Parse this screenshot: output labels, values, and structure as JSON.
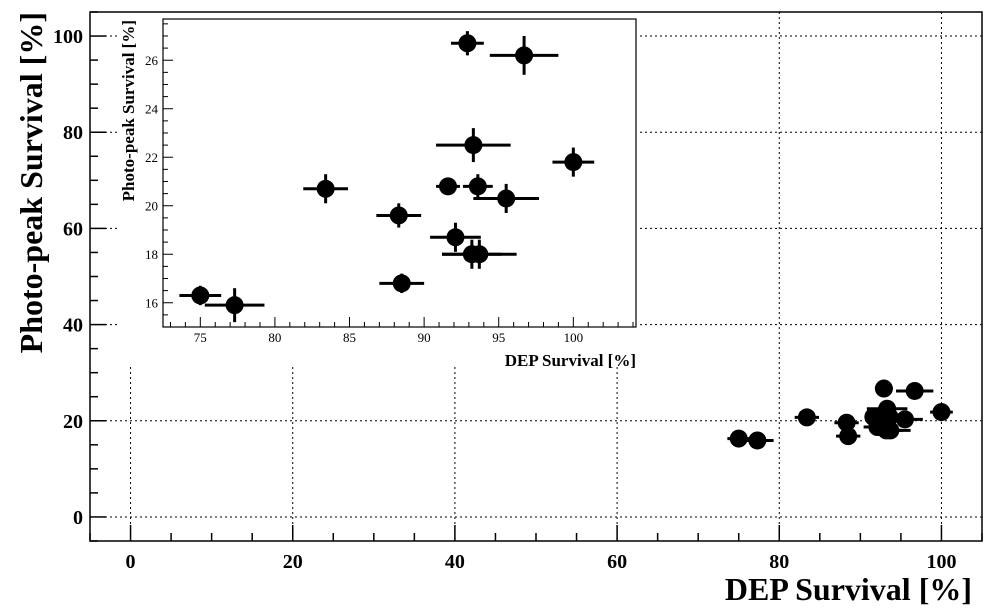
{
  "chart_data": [
    {
      "type": "scatter",
      "title": "",
      "xlabel": "DEP Survival [%]",
      "ylabel": "Photo-peak Survival [%]",
      "xlim": [
        -5,
        105
      ],
      "ylim": [
        -5,
        105
      ],
      "xticks": [
        0,
        20,
        40,
        60,
        80,
        100
      ],
      "yticks": [
        0,
        20,
        40,
        60,
        80,
        100
      ],
      "grid": true,
      "series": [
        {
          "x": [
            75.0,
            77.3,
            83.4,
            88.3,
            88.5,
            91.6,
            92.1,
            92.9,
            93.2,
            93.3,
            93.6,
            93.7,
            95.5,
            96.7,
            100.0
          ],
          "y": [
            16.3,
            15.9,
            20.7,
            19.6,
            16.8,
            20.8,
            18.7,
            26.7,
            18.0,
            22.5,
            20.8,
            18.0,
            20.3,
            26.2,
            21.8
          ],
          "xerr": [
            1.4,
            2.0,
            1.5,
            1.5,
            1.5,
            0.8,
            1.7,
            1.1,
            2.0,
            2.5,
            1.0,
            2.5,
            2.2,
            2.3,
            1.4
          ],
          "yerr": [
            0.4,
            0.7,
            0.6,
            0.5,
            0.4,
            0.3,
            0.6,
            0.5,
            0.6,
            0.7,
            0.5,
            0.6,
            0.6,
            0.8,
            0.6
          ]
        }
      ]
    },
    {
      "type": "scatter",
      "title": "",
      "xlabel": "DEP Survival [%]",
      "ylabel": "Photo-peak Survival [%]",
      "xlim": [
        72.5,
        104.2
      ],
      "ylim": [
        15.0,
        27.7
      ],
      "xticks": [
        75,
        80,
        85,
        90,
        95,
        100
      ],
      "yticks": [
        16,
        18,
        20,
        22,
        24,
        26
      ],
      "grid": false,
      "series": [
        {
          "x": [
            75.0,
            77.3,
            83.4,
            88.3,
            88.5,
            91.6,
            92.1,
            92.9,
            93.2,
            93.3,
            93.6,
            93.7,
            95.5,
            96.7,
            100.0
          ],
          "y": [
            16.3,
            15.9,
            20.7,
            19.6,
            16.8,
            20.8,
            18.7,
            26.7,
            18.0,
            22.5,
            20.8,
            18.0,
            20.3,
            26.2,
            21.8
          ],
          "xerr": [
            1.4,
            2.0,
            1.5,
            1.5,
            1.5,
            0.8,
            1.7,
            1.1,
            2.0,
            2.5,
            1.0,
            2.5,
            2.2,
            2.3,
            1.4
          ],
          "yerr": [
            0.4,
            0.7,
            0.6,
            0.5,
            0.4,
            0.3,
            0.6,
            0.5,
            0.6,
            0.7,
            0.5,
            0.6,
            0.6,
            0.8,
            0.6
          ]
        }
      ]
    }
  ]
}
